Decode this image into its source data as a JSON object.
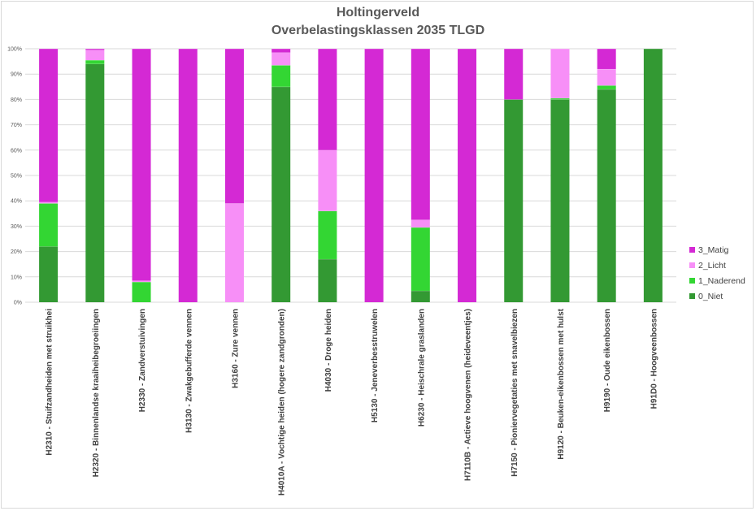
{
  "chart_data": {
    "type": "bar",
    "stacked": true,
    "percent": true,
    "title": "Holtingerveld",
    "subtitle": "Overbelastingsklassen 2035 TLGD",
    "ylim": [
      0,
      100
    ],
    "yticks": [
      "0%",
      "10%",
      "20%",
      "30%",
      "40%",
      "50%",
      "60%",
      "70%",
      "80%",
      "90%",
      "100%"
    ],
    "grid": true,
    "legend_position": "right",
    "categories": [
      "H2310 - Stuifzandheiden met struikhei",
      "H2320 - Binnenlandse kraaiheibegroeiingen",
      "H2330 - Zandverstuivingen",
      "H3130 - Zwakgebufferde vennen",
      "H3160 - Zure vennen",
      "H4010A - Vochtige heiden (hogere zandgronden)",
      "H4030 - Droge heiden",
      "H5130 - Jeneverbesstruwelen",
      "H6230 - Heischrale graslanden",
      "H7110B - Actieve hoogvenen (heideveentjes)",
      "H7150 - Pioniervegetaties met snavelbiezen",
      "H9120 - Beuken-eikenbossen met hulst",
      "H9190 - Oude eikenbossen",
      "H91D0 - Hoogveenbossen"
    ],
    "series": [
      {
        "name": "0_Niet",
        "color": "#339933",
        "values": [
          22,
          94,
          0,
          0,
          0,
          85,
          17,
          0,
          4.5,
          0,
          80,
          80,
          84,
          100
        ]
      },
      {
        "name": "1_Naderend",
        "color": "#33d633",
        "values": [
          17,
          1.5,
          8,
          0,
          0,
          8.5,
          19,
          0,
          25,
          0,
          0,
          0.5,
          1.5,
          0
        ]
      },
      {
        "name": "2_Licht",
        "color": "#f78ff7",
        "values": [
          0.5,
          4,
          0.5,
          0,
          39,
          5,
          24,
          0,
          3,
          0,
          0,
          19.5,
          6.5,
          0
        ]
      },
      {
        "name": "3_Matig",
        "color": "#d429d4",
        "values": [
          60.5,
          0.5,
          91.5,
          100,
          61,
          1.5,
          40,
          100,
          67.5,
          100,
          20,
          0,
          8,
          0
        ]
      }
    ],
    "legend_order": [
      "3_Matig",
      "2_Licht",
      "1_Naderend",
      "0_Niet"
    ]
  }
}
